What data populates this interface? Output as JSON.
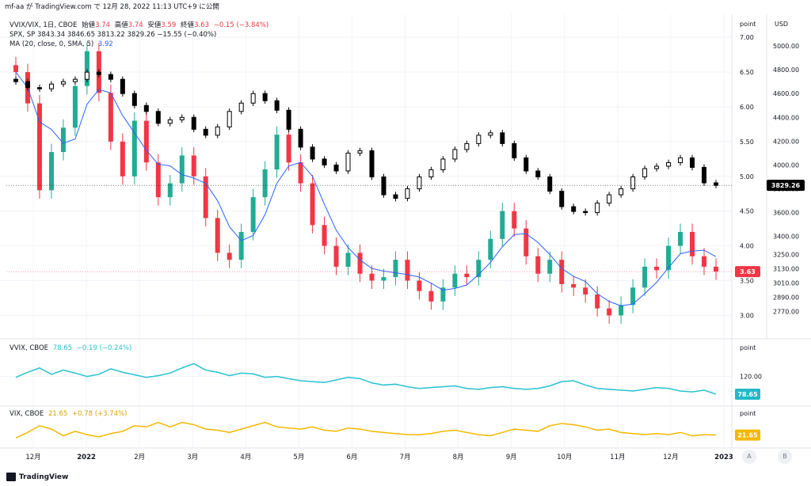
{
  "header": {
    "title": "mf-aa が TradingView.com で 12月 28, 2022 11:13 UTC+9 に公開"
  },
  "legend_main": {
    "line1": {
      "symbol": "VVIX/VIX, 1日, CBOE",
      "open_label": "始値",
      "open": "3.74",
      "high_label": "高値",
      "high": "3.74",
      "low_label": "安値",
      "low": "3.59",
      "close_label": "終値",
      "close": "3.63",
      "change": "−0.15 (−3.84%)"
    },
    "line2": "SPX, SP  3843.34  3846.65  3813.22  3829.26  −15.55 (−0.40%)",
    "line3_label": "MA (20, close, 0, SMA, 5)",
    "line3_value": "3.92"
  },
  "legend_vvix": {
    "label": "VVIX, CBOE",
    "value": "78.65",
    "change": "−0.19 (−0.24%)"
  },
  "legend_vix": {
    "label": "VIX, CBOE",
    "value": "21.65",
    "change": "+0.78 (+3.74%)"
  },
  "axis_labels": {
    "point": "point",
    "usd": "USD"
  },
  "badges": {
    "spx": "3829.26",
    "ratio": "3.63",
    "vvix": "78.65",
    "vix": "21.65"
  },
  "footer": {
    "brand": "TradingView",
    "btn_a": "A",
    "btn_b": "B"
  },
  "colors": {
    "up": "#22ab94",
    "down": "#f23645",
    "ma": "#2962ff",
    "spx": "#000000",
    "vvix": "#28c2d1",
    "vix": "#f5b800",
    "grid": "#f0f3fa"
  },
  "chart_data": [
    {
      "type": "candlestick",
      "name": "VVIX/VIX, 1日, CBOE",
      "axis": "left-point",
      "ylim": [
        2.8,
        7.15
      ],
      "yticks": [
        "7.00",
        "6.50",
        "6.00",
        "5.50",
        "5.00",
        "4.50",
        "4.00",
        "3.50",
        "3.00"
      ],
      "x_ticks": [
        "12月",
        "2022",
        "2月",
        "3月",
        "4月",
        "5月",
        "6月",
        "7月",
        "8月",
        "9月",
        "10月",
        "11月",
        "12月",
        "2023"
      ],
      "closes": [
        6.5,
        6.05,
        4.8,
        5.35,
        5.7,
        6.3,
        6.8,
        6.2,
        5.5,
        5.0,
        5.8,
        5.2,
        4.7,
        4.9,
        5.3,
        5.0,
        4.4,
        3.9,
        3.8,
        4.2,
        4.7,
        5.1,
        5.6,
        5.2,
        4.9,
        4.3,
        4.0,
        3.7,
        3.9,
        3.6,
        3.5,
        3.55,
        3.8,
        3.5,
        3.35,
        3.2,
        3.4,
        3.6,
        3.55,
        3.8,
        4.1,
        4.5,
        4.25,
        3.85,
        3.6,
        3.8,
        3.45,
        3.4,
        3.3,
        3.1,
        3.0,
        3.15,
        3.4,
        3.7,
        3.65,
        4.0,
        4.2,
        3.85,
        3.7,
        3.63
      ],
      "ma_label": "MA (20, close, 0, SMA, 5)",
      "ma_last": 3.92,
      "last_close": 3.63,
      "last_open": 3.74,
      "last_high": 3.74,
      "last_low": 3.59
    },
    {
      "type": "candlestick",
      "name": "SPX, SP",
      "axis": "right-usd",
      "ylim": [
        2620,
        5160
      ],
      "yticks": [
        "5000.00",
        "4800.00",
        "4600.00",
        "4400.00",
        "4200.00",
        "4000.00",
        "3800.00",
        "3600.00",
        "3400.00",
        "3250.00",
        "3130.00",
        "3010.00",
        "2890.00",
        "2770.00"
      ],
      "closes": [
        4700,
        4650,
        4640,
        4680,
        4700,
        4720,
        4780,
        4760,
        4720,
        4600,
        4500,
        4450,
        4350,
        4380,
        4400,
        4300,
        4250,
        4320,
        4450,
        4520,
        4600,
        4540,
        4460,
        4300,
        4150,
        4050,
        4000,
        3950,
        4100,
        4120,
        3900,
        3750,
        3720,
        3800,
        3900,
        3960,
        4050,
        4130,
        4180,
        4250,
        4270,
        4180,
        4060,
        3950,
        3900,
        3780,
        3650,
        3610,
        3600,
        3680,
        3750,
        3800,
        3900,
        3970,
        3990,
        4020,
        4060,
        3980,
        3850,
        3829.26
      ],
      "last_open": 3843.34,
      "last_high": 3846.65,
      "last_low": 3813.22,
      "last_close": 3829.26,
      "change": "−15.55 (−0.40%)"
    },
    {
      "type": "line",
      "name": "VVIX, CBOE",
      "ylim": [
        60,
        175
      ],
      "yticks": [
        "120.00"
      ],
      "values": [
        118,
        130,
        140,
        125,
        135,
        128,
        120,
        125,
        138,
        130,
        124,
        118,
        122,
        128,
        140,
        150,
        135,
        130,
        122,
        128,
        126,
        118,
        120,
        115,
        110,
        108,
        106,
        112,
        118,
        115,
        105,
        100,
        102,
        96,
        92,
        94,
        96,
        98,
        92,
        90,
        94,
        96,
        92,
        90,
        92,
        98,
        108,
        110,
        100,
        92,
        90,
        88,
        86,
        90,
        94,
        92,
        86,
        84,
        88,
        78.65
      ],
      "last": 78.65
    },
    {
      "type": "line",
      "name": "VIX, CBOE",
      "ylim": [
        15,
        42
      ],
      "values": [
        19,
        24,
        30,
        27,
        21,
        25,
        22,
        20,
        23,
        25,
        30,
        29,
        33,
        29,
        33,
        31,
        27,
        26,
        24,
        27,
        30,
        33,
        29,
        28,
        27,
        29,
        26,
        25,
        28,
        27,
        25,
        24,
        23,
        22,
        22,
        23,
        25,
        26,
        24,
        22,
        21,
        24,
        27,
        26,
        25,
        30,
        32,
        31,
        29,
        26,
        27,
        24,
        23,
        22,
        23,
        22,
        24,
        21,
        22,
        21.65
      ],
      "last": 21.65
    }
  ]
}
